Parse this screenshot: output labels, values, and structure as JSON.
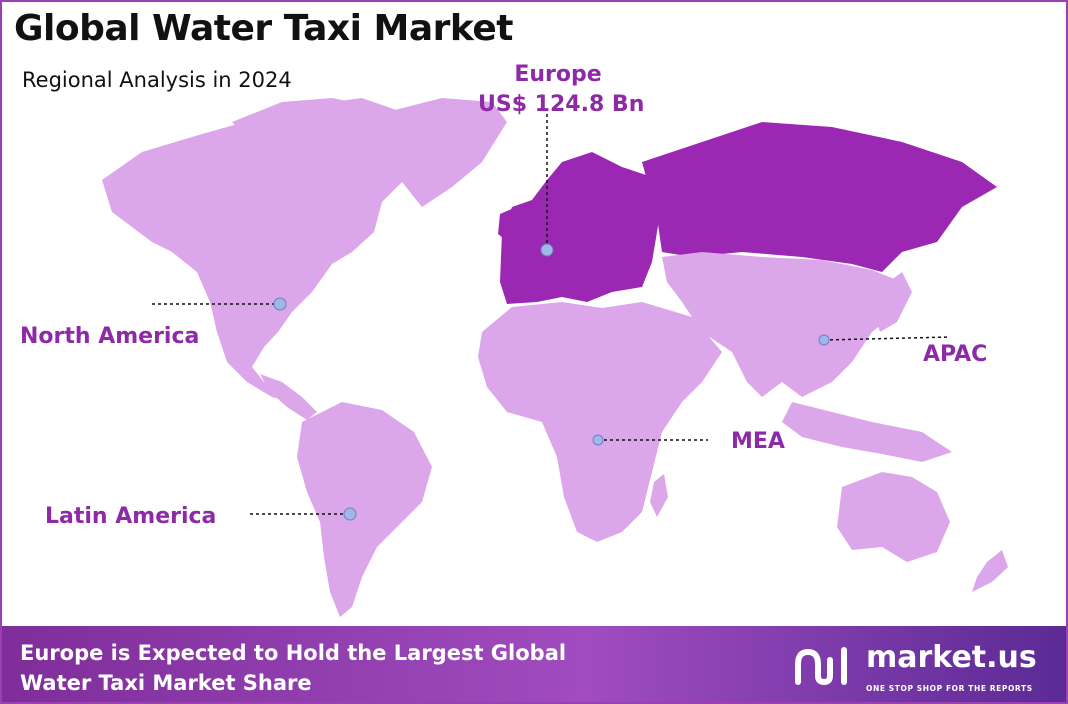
{
  "header": {
    "title": "Global Water Taxi Market",
    "subtitle": "Regional Analysis in 2024"
  },
  "colors": {
    "land": "#dca6ea",
    "highlight": "#9a28b2",
    "label": "#8e2aa8",
    "marker": "#9fb8e8",
    "frame": "#9b3fb5",
    "footer_start": "#7f2d9a",
    "footer_end": "#5b2a95"
  },
  "regions": [
    {
      "id": "europe",
      "name": "Europe",
      "value": "US$ 124.8 Bn",
      "highlighted": true
    },
    {
      "id": "north-america",
      "name": "North America",
      "highlighted": false
    },
    {
      "id": "latin-america",
      "name": "Latin America",
      "highlighted": false
    },
    {
      "id": "mea",
      "name": "MEA",
      "highlighted": false
    },
    {
      "id": "apac",
      "name": "APAC",
      "highlighted": false
    }
  ],
  "footer": {
    "line1": "Europe is Expected to Hold the Largest Global",
    "line2": "Water Taxi Market Share",
    "brand_name": "market.us",
    "brand_tagline": "ONE STOP SHOP FOR THE REPORTS",
    "brand_icon": "market-us-logo-icon"
  }
}
